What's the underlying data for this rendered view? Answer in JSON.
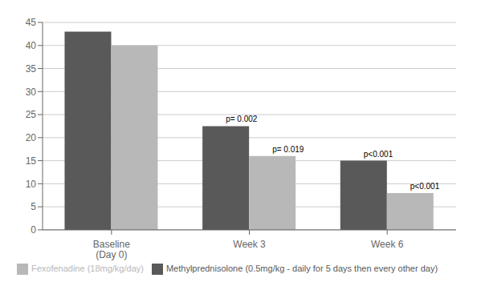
{
  "chart_data": {
    "type": "bar",
    "categories": [
      "Baseline\n(Day 0)",
      "Week 3",
      "Week 6"
    ],
    "series": [
      {
        "name": "Methylprednisolone (0.5mg/kg - daily for 5 days then every other day)",
        "color": "#595959",
        "values": [
          43,
          22.5,
          15
        ],
        "annotations": [
          null,
          "p= 0.002",
          "p<0.001"
        ]
      },
      {
        "name": "Fexofenadine (18mg/kg/day)",
        "color": "#b8b8b8",
        "values": [
          40,
          16,
          8
        ],
        "annotations": [
          null,
          "p= 0.019",
          "p<0.001"
        ]
      }
    ],
    "ylim": [
      0,
      45
    ],
    "yticks": [
      0,
      5,
      10,
      15,
      20,
      25,
      30,
      35,
      40,
      45
    ],
    "grid": true,
    "legend": "bottom"
  }
}
